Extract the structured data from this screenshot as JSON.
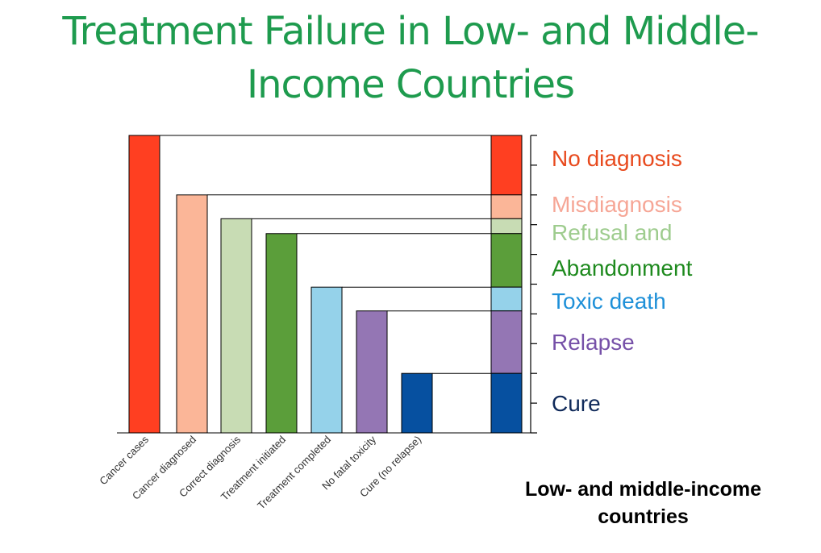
{
  "title": "Treatment Failure in Low- and Middle-Income Countries",
  "region_label": "Low- and middle-income countries",
  "chart_data": {
    "type": "bar",
    "categories": [
      "Cancer cases",
      "Cancer diagnosed",
      "Correct diagnosis",
      "Treatment initiated",
      "Treatment completed",
      "No fatal toxicity",
      "Cure (no relapse)"
    ],
    "values": [
      100,
      80,
      72,
      67,
      49,
      41,
      20
    ],
    "bar_colors": [
      "#ff3f21",
      "#fbb698",
      "#c8dcb4",
      "#5b9e3a",
      "#95d2ea",
      "#9476b4",
      "#0650a0"
    ],
    "ylim": [
      0,
      100
    ],
    "y_ticks": [
      0,
      10,
      20,
      30,
      40,
      50,
      60,
      70,
      80,
      90,
      100
    ],
    "stacked_bar": [
      {
        "label": "No diagnosis",
        "from": 80,
        "to": 100,
        "color": "#ff3f21",
        "text_color": "#e84a1e"
      },
      {
        "label": "Misdiagnosis",
        "from": 72,
        "to": 80,
        "color": "#fbb698",
        "text_color": "#f6a696"
      },
      {
        "label": "Refusal and",
        "from": 67,
        "to": 72,
        "color": "#c8dcb4",
        "text_color": "#9ecc8e"
      },
      {
        "label": "Abandonment",
        "from": 49,
        "to": 67,
        "color": "#5b9e3a",
        "text_color": "#1e8a1e"
      },
      {
        "label": "Toxic death",
        "from": 41,
        "to": 49,
        "color": "#95d2ea",
        "text_color": "#1e90d8"
      },
      {
        "label": "Relapse",
        "from": 20,
        "to": 41,
        "color": "#9476b4",
        "text_color": "#7650a8"
      },
      {
        "label": "Cure",
        "from": 0,
        "to": 20,
        "color": "#0650a0",
        "text_color": "#102a5a"
      }
    ]
  }
}
